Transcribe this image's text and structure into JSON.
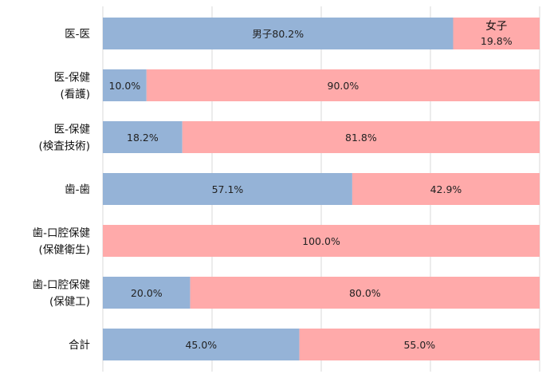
{
  "chart_data": {
    "type": "bar",
    "orientation": "horizontal",
    "stacked": true,
    "percent_stacked": true,
    "xlim": [
      0,
      100
    ],
    "grid": true,
    "categories": [
      [
        "医-医"
      ],
      [
        "医-保健",
        "(看護)"
      ],
      [
        "医-保健",
        "(検査技術)"
      ],
      [
        "歯-歯"
      ],
      [
        "歯-口腔保健",
        "(保健衛生)"
      ],
      [
        "歯-口腔保健",
        "(保健工)"
      ],
      [
        "合計"
      ]
    ],
    "series": [
      {
        "name": "男子",
        "color": "#95b3d7",
        "values": [
          80.2,
          10.0,
          18.2,
          57.1,
          0,
          20.0,
          45.0
        ]
      },
      {
        "name": "女子",
        "color": "#ffaaaa",
        "values": [
          19.8,
          90.0,
          81.8,
          42.9,
          100.0,
          80.0,
          55.0
        ]
      }
    ],
    "data_labels": [
      [
        "男子80.2%",
        "19.8%"
      ],
      [
        "10.0%",
        "90.0%"
      ],
      [
        "18.2%",
        "81.8%"
      ],
      [
        "57.1%",
        "42.9%"
      ],
      [
        "",
        "100.0%"
      ],
      [
        "20.0%",
        "80.0%"
      ],
      [
        "45.0%",
        "55.0%"
      ]
    ],
    "annotations": [
      {
        "text": "女子"
      }
    ]
  }
}
